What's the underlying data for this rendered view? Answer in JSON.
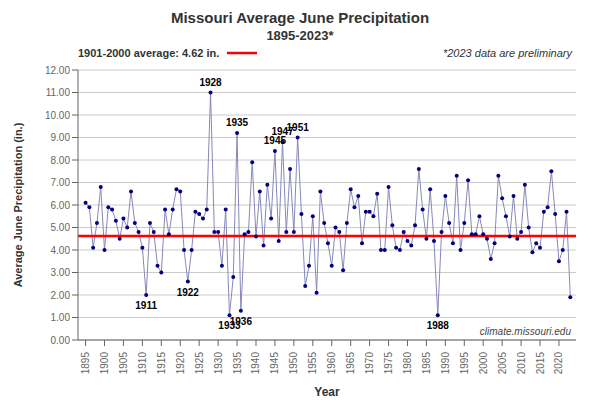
{
  "chart_data": {
    "type": "line",
    "title": "Missouri Average June Precipitation",
    "subtitle": "1895-2023*",
    "xlabel": "Year",
    "ylabel": "Average June Precipitation (in.)",
    "note": "*2023 data are preliminary",
    "watermark": "climate.missouri.edu",
    "grid": "y",
    "xlim": [
      1893,
      2024.5
    ],
    "xticks": [
      1895,
      1900,
      1905,
      1910,
      1915,
      1920,
      1925,
      1930,
      1935,
      1940,
      1945,
      1950,
      1955,
      1960,
      1965,
      1970,
      1975,
      1980,
      1985,
      1990,
      1995,
      2000,
      2005,
      2010,
      2015,
      2020
    ],
    "ylim": [
      0.0,
      12.0
    ],
    "yticks": [
      {
        "value": 0.0,
        "label": "0.00"
      },
      {
        "value": 1.0,
        "label": "1.00"
      },
      {
        "value": 2.0,
        "label": "2.00"
      },
      {
        "value": 3.0,
        "label": "3.00"
      },
      {
        "value": 4.0,
        "label": "4.00"
      },
      {
        "value": 5.0,
        "label": "5.00"
      },
      {
        "value": 6.0,
        "label": "6.00"
      },
      {
        "value": 7.0,
        "label": "7.00"
      },
      {
        "value": 8.0,
        "label": "8.00"
      },
      {
        "value": 9.0,
        "label": "9.00"
      },
      {
        "value": 10.0,
        "label": "10.00"
      },
      {
        "value": 11.0,
        "label": "11.00"
      },
      {
        "value": 12.0,
        "label": "12.00"
      }
    ],
    "reference_lines": [
      {
        "value": 4.62,
        "label": "1901-2000 average: 4.62 in.",
        "color": "#FF0000"
      }
    ],
    "annotations": [
      {
        "text": "1928",
        "x": 1928,
        "y": 11.0
      },
      {
        "text": "1935",
        "x": 1935,
        "y": 9.2
      },
      {
        "text": "1945",
        "x": 1945,
        "y": 8.4
      },
      {
        "text": "1947",
        "x": 1947,
        "y": 8.8
      },
      {
        "text": "1951",
        "x": 1951,
        "y": 9.0
      },
      {
        "text": "1911",
        "x": 1911,
        "y": 2.0
      },
      {
        "text": "1922",
        "x": 1922,
        "y": 2.6
      },
      {
        "text": "1933",
        "x": 1933,
        "y": 1.1
      },
      {
        "text": "1936",
        "x": 1936,
        "y": 1.3
      },
      {
        "text": "1988",
        "x": 1988,
        "y": 1.1
      }
    ],
    "x": [
      1895,
      1896,
      1897,
      1898,
      1899,
      1900,
      1901,
      1902,
      1903,
      1904,
      1905,
      1906,
      1907,
      1908,
      1909,
      1910,
      1911,
      1912,
      1913,
      1914,
      1915,
      1916,
      1917,
      1918,
      1919,
      1920,
      1921,
      1922,
      1923,
      1924,
      1925,
      1926,
      1927,
      1928,
      1929,
      1930,
      1931,
      1932,
      1933,
      1934,
      1935,
      1936,
      1937,
      1938,
      1939,
      1940,
      1941,
      1942,
      1943,
      1944,
      1945,
      1946,
      1947,
      1948,
      1949,
      1950,
      1951,
      1952,
      1953,
      1954,
      1955,
      1956,
      1957,
      1958,
      1959,
      1960,
      1961,
      1962,
      1963,
      1964,
      1965,
      1966,
      1967,
      1968,
      1969,
      1970,
      1971,
      1972,
      1973,
      1974,
      1975,
      1976,
      1977,
      1978,
      1979,
      1980,
      1981,
      1982,
      1983,
      1984,
      1985,
      1986,
      1987,
      1988,
      1989,
      1990,
      1991,
      1992,
      1993,
      1994,
      1995,
      1996,
      1997,
      1998,
      1999,
      2000,
      2001,
      2002,
      2003,
      2004,
      2005,
      2006,
      2007,
      2008,
      2009,
      2010,
      2011,
      2012,
      2013,
      2014,
      2015,
      2016,
      2017,
      2018,
      2019,
      2020,
      2021,
      2022,
      2023
    ],
    "series": [
      {
        "type": "line",
        "color": "#8888BB",
        "values": [
          6.1,
          5.9,
          4.1,
          5.2,
          6.8,
          4.0,
          5.9,
          5.8,
          5.3,
          4.5,
          5.4,
          5.0,
          6.6,
          5.2,
          4.8,
          4.1,
          2.0,
          5.2,
          4.8,
          3.3,
          3.0,
          5.8,
          4.7,
          5.8,
          6.7,
          6.6,
          4.0,
          2.6,
          4.0,
          5.7,
          5.6,
          5.4,
          5.8,
          11.0,
          4.8,
          4.8,
          3.3,
          5.8,
          1.1,
          2.8,
          9.2,
          1.3,
          4.7,
          4.8,
          7.9,
          4.6,
          6.6,
          4.2,
          6.9,
          5.4,
          8.4,
          4.4,
          8.8,
          4.8,
          7.6,
          4.8,
          9.0,
          5.6,
          2.4,
          3.3,
          5.5,
          2.1,
          6.6,
          5.2,
          4.3,
          3.3,
          5.0,
          4.8,
          3.1,
          5.2,
          6.7,
          5.9,
          6.4,
          4.3,
          5.7,
          5.7,
          5.5,
          6.5,
          4.0,
          4.0,
          6.8,
          5.1,
          4.1,
          4.0,
          4.8,
          4.4,
          4.2,
          5.1,
          7.6,
          5.8,
          4.5,
          6.7,
          4.4,
          1.1,
          4.8,
          6.4,
          5.2,
          4.3,
          7.3,
          4.0,
          5.2,
          7.1,
          4.7,
          4.7,
          5.5,
          4.7,
          4.5,
          3.6,
          4.3,
          7.3,
          6.3,
          5.5,
          4.6,
          6.4,
          4.5,
          4.8,
          6.9,
          5.0,
          3.9,
          4.3,
          4.1,
          5.7,
          5.9,
          7.5,
          5.6,
          3.5,
          4.0,
          5.7,
          1.9
        ]
      },
      {
        "type": "scatter",
        "color": "#000080",
        "values": [
          6.1,
          5.9,
          4.1,
          5.2,
          6.8,
          4.0,
          5.9,
          5.8,
          5.3,
          4.5,
          5.4,
          5.0,
          6.6,
          5.2,
          4.8,
          4.1,
          2.0,
          5.2,
          4.8,
          3.3,
          3.0,
          5.8,
          4.7,
          5.8,
          6.7,
          6.6,
          4.0,
          2.6,
          4.0,
          5.7,
          5.6,
          5.4,
          5.8,
          11.0,
          4.8,
          4.8,
          3.3,
          5.8,
          1.1,
          2.8,
          9.2,
          1.3,
          4.7,
          4.8,
          7.9,
          4.6,
          6.6,
          4.2,
          6.9,
          5.4,
          8.4,
          4.4,
          8.8,
          4.8,
          7.6,
          4.8,
          9.0,
          5.6,
          2.4,
          3.3,
          5.5,
          2.1,
          6.6,
          5.2,
          4.3,
          3.3,
          5.0,
          4.8,
          3.1,
          5.2,
          6.7,
          5.9,
          6.4,
          4.3,
          5.7,
          5.7,
          5.5,
          6.5,
          4.0,
          4.0,
          6.8,
          5.1,
          4.1,
          4.0,
          4.8,
          4.4,
          4.2,
          5.1,
          7.6,
          5.8,
          4.5,
          6.7,
          4.4,
          1.1,
          4.8,
          6.4,
          5.2,
          4.3,
          7.3,
          4.0,
          5.2,
          7.1,
          4.7,
          4.7,
          5.5,
          4.7,
          4.5,
          3.6,
          4.3,
          7.3,
          6.3,
          5.5,
          4.6,
          6.4,
          4.5,
          4.8,
          6.9,
          5.0,
          3.9,
          4.3,
          4.1,
          5.7,
          5.9,
          7.5,
          5.6,
          3.5,
          4.0,
          5.7,
          1.9
        ]
      }
    ]
  }
}
